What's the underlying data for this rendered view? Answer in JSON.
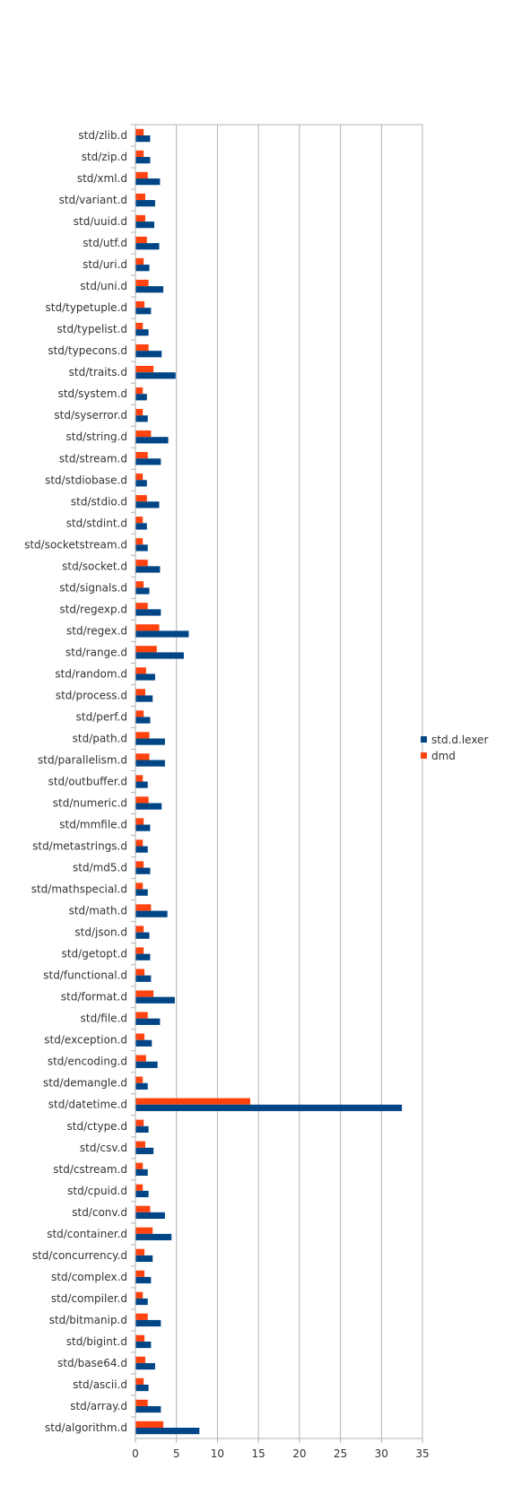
{
  "chart_data": {
    "type": "bar",
    "orientation": "horizontal",
    "categories": [
      "std/zlib.d",
      "std/zip.d",
      "std/xml.d",
      "std/variant.d",
      "std/uuid.d",
      "std/utf.d",
      "std/uri.d",
      "std/uni.d",
      "std/typetuple.d",
      "std/typelist.d",
      "std/typecons.d",
      "std/traits.d",
      "std/system.d",
      "std/syserror.d",
      "std/string.d",
      "std/stream.d",
      "std/stdiobase.d",
      "std/stdio.d",
      "std/stdint.d",
      "std/socketstream.d",
      "std/socket.d",
      "std/signals.d",
      "std/regexp.d",
      "std/regex.d",
      "std/range.d",
      "std/random.d",
      "std/process.d",
      "std/perf.d",
      "std/path.d",
      "std/parallelism.d",
      "std/outbuffer.d",
      "std/numeric.d",
      "std/mmfile.d",
      "std/metastrings.d",
      "std/md5.d",
      "std/mathspecial.d",
      "std/math.d",
      "std/json.d",
      "std/getopt.d",
      "std/functional.d",
      "std/format.d",
      "std/file.d",
      "std/exception.d",
      "std/encoding.d",
      "std/demangle.d",
      "std/datetime.d",
      "std/ctype.d",
      "std/csv.d",
      "std/cstream.d",
      "std/cpuid.d",
      "std/conv.d",
      "std/container.d",
      "std/concurrency.d",
      "std/complex.d",
      "std/compiler.d",
      "std/bitmanip.d",
      "std/bigint.d",
      "std/base64.d",
      "std/ascii.d",
      "std/array.d",
      "std/algorithm.d"
    ],
    "series": [
      {
        "name": "std.d.lexer",
        "color": "#004586",
        "values": [
          1.8,
          1.8,
          3.0,
          2.4,
          2.3,
          2.9,
          1.7,
          3.4,
          1.9,
          1.6,
          3.2,
          4.9,
          1.4,
          1.5,
          4.0,
          3.1,
          1.4,
          2.9,
          1.4,
          1.5,
          3.0,
          1.7,
          3.1,
          6.5,
          5.9,
          2.4,
          2.1,
          1.8,
          3.6,
          3.6,
          1.5,
          3.2,
          1.8,
          1.5,
          1.8,
          1.5,
          3.9,
          1.7,
          1.8,
          1.9,
          4.8,
          3.0,
          2.0,
          2.7,
          1.5,
          32.5,
          1.6,
          2.2,
          1.5,
          1.6,
          3.6,
          4.4,
          2.1,
          1.9,
          1.5,
          3.1,
          1.9,
          2.4,
          1.6,
          3.1,
          7.8
        ]
      },
      {
        "name": "dmd",
        "color": "#ff420e",
        "values": [
          1.0,
          1.0,
          1.5,
          1.2,
          1.2,
          1.4,
          1.0,
          1.6,
          1.1,
          0.9,
          1.6,
          2.2,
          0.9,
          0.9,
          1.9,
          1.5,
          0.9,
          1.4,
          0.9,
          0.9,
          1.5,
          1.0,
          1.5,
          2.9,
          2.6,
          1.3,
          1.2,
          1.0,
          1.7,
          1.7,
          0.9,
          1.6,
          1.0,
          0.9,
          1.0,
          0.9,
          1.9,
          1.0,
          1.0,
          1.1,
          2.2,
          1.5,
          1.1,
          1.3,
          0.9,
          14.0,
          1.0,
          1.2,
          0.9,
          0.9,
          1.8,
          2.1,
          1.1,
          1.1,
          0.9,
          1.5,
          1.1,
          1.2,
          1.0,
          1.5,
          3.4
        ]
      }
    ],
    "xlim": [
      0,
      35
    ],
    "x_ticks": [
      0,
      5,
      10,
      15,
      20,
      25,
      30,
      35
    ],
    "grid": true,
    "legend_position": "right",
    "title": "",
    "xlabel": "",
    "ylabel": ""
  }
}
